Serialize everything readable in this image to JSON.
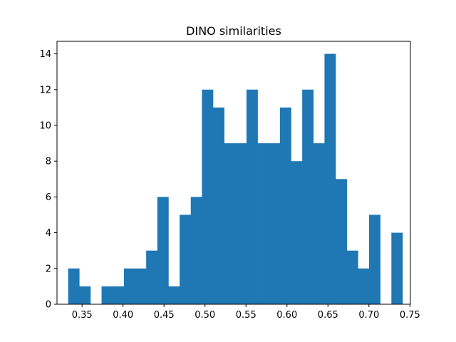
{
  "chart_data": {
    "type": "bar",
    "title": "DINO similarities",
    "xlabel": "",
    "ylabel": "",
    "xlim": [
      0.3194,
      0.7506
    ],
    "ylim": [
      0,
      14.7
    ],
    "x_ticks": [
      0.35,
      0.4,
      0.45,
      0.5,
      0.55,
      0.6,
      0.65,
      0.7,
      0.75
    ],
    "x_tick_labels": [
      "0.35",
      "0.40",
      "0.45",
      "0.50",
      "0.55",
      "0.60",
      "0.65",
      "0.70",
      "0.75"
    ],
    "y_ticks": [
      0,
      2,
      4,
      6,
      8,
      10,
      12,
      14
    ],
    "y_tick_labels": [
      "0",
      "2",
      "4",
      "6",
      "8",
      "10",
      "12",
      "14"
    ],
    "bin_start": 0.333,
    "bin_width": 0.0136,
    "counts": [
      2,
      1,
      0,
      1,
      1,
      2,
      2,
      3,
      6,
      1,
      5,
      6,
      12,
      11,
      9,
      9,
      12,
      9,
      9,
      11,
      8,
      12,
      9,
      14,
      7,
      3,
      2,
      5,
      0,
      4
    ],
    "bar_color": "#1f77b4",
    "grid": false,
    "legend": "none"
  }
}
